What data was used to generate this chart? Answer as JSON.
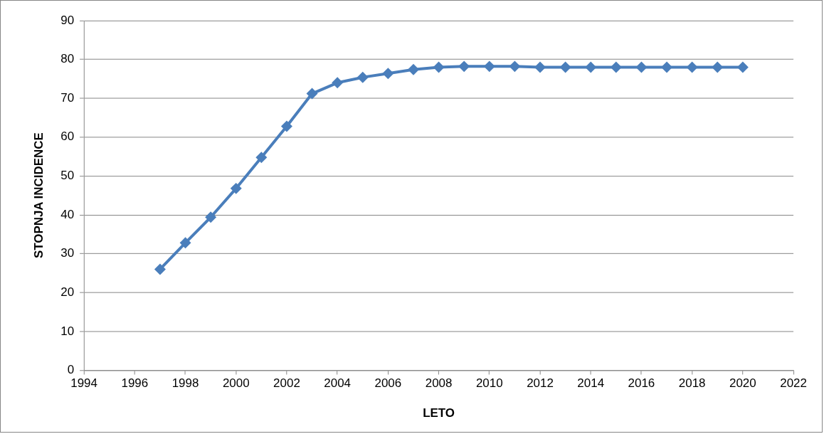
{
  "chart_data": {
    "type": "line",
    "xlabel": "LETO",
    "ylabel": "STOPNJA INCIDENCE",
    "x": [
      1997,
      1998,
      1999,
      2000,
      2001,
      2002,
      2003,
      2004,
      2005,
      2006,
      2007,
      2008,
      2009,
      2010,
      2011,
      2012,
      2013,
      2014,
      2015,
      2016,
      2017,
      2018,
      2019,
      2020
    ],
    "series": [
      {
        "color": "#4a7ebb",
        "values": [
          26,
          32.8,
          39.4,
          46.8,
          54.8,
          62.8,
          71.2,
          74,
          75.4,
          76.4,
          77.4,
          78,
          78.2,
          78.2,
          78.2,
          78,
          78,
          78,
          78,
          78,
          78,
          78,
          78,
          78
        ]
      }
    ],
    "xlim": [
      1994,
      2022
    ],
    "xticks": [
      1994,
      1996,
      1998,
      2000,
      2002,
      2004,
      2006,
      2008,
      2010,
      2012,
      2014,
      2016,
      2018,
      2020,
      2022
    ],
    "ylim": [
      0,
      90
    ],
    "yticks": [
      0,
      10,
      20,
      30,
      40,
      50,
      60,
      70,
      80,
      90
    ],
    "grid": "y",
    "legend": false,
    "marker": "diamond",
    "line_style": "solid"
  }
}
